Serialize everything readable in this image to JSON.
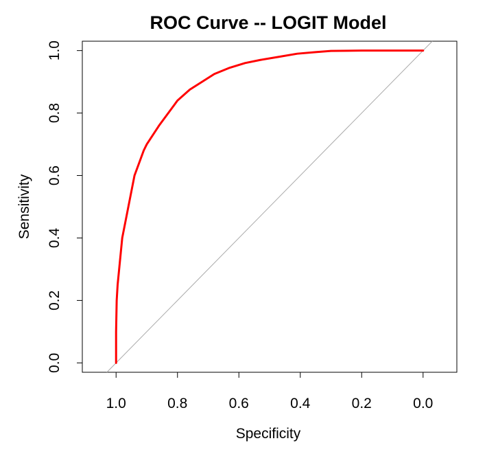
{
  "chart_data": {
    "type": "line",
    "title": "ROC Curve -- LOGIT Model",
    "xlabel": "Specificity",
    "ylabel": "Sensitivity",
    "x_reversed": true,
    "xlim": [
      1.11,
      -0.11
    ],
    "ylim": [
      -0.03,
      1.03
    ],
    "x_ticks": [
      "1.0",
      "0.8",
      "0.6",
      "0.4",
      "0.2",
      "0.0"
    ],
    "y_ticks": [
      "0.0",
      "0.2",
      "0.4",
      "0.6",
      "0.8",
      "1.0"
    ],
    "grid": false,
    "legend": "none",
    "series": [
      {
        "color": "#ff0000",
        "points": [
          [
            1.0,
            0.0
          ],
          [
            1.0,
            0.1
          ],
          [
            0.998,
            0.2
          ],
          [
            0.995,
            0.25
          ],
          [
            0.99,
            0.3
          ],
          [
            0.985,
            0.35
          ],
          [
            0.98,
            0.4
          ],
          [
            0.97,
            0.45
          ],
          [
            0.96,
            0.5
          ],
          [
            0.95,
            0.55
          ],
          [
            0.94,
            0.6
          ],
          [
            0.925,
            0.64
          ],
          [
            0.91,
            0.68
          ],
          [
            0.9,
            0.7
          ],
          [
            0.88,
            0.73
          ],
          [
            0.86,
            0.76
          ],
          [
            0.83,
            0.8
          ],
          [
            0.8,
            0.84
          ],
          [
            0.76,
            0.875
          ],
          [
            0.72,
            0.9
          ],
          [
            0.68,
            0.925
          ],
          [
            0.63,
            0.945
          ],
          [
            0.58,
            0.96
          ],
          [
            0.53,
            0.97
          ],
          [
            0.47,
            0.98
          ],
          [
            0.41,
            0.99
          ],
          [
            0.35,
            0.995
          ],
          [
            0.3,
            0.999
          ],
          [
            0.2,
            1.0
          ],
          [
            0.1,
            1.0
          ],
          [
            0.0,
            1.0
          ]
        ]
      }
    ],
    "reference_line": {
      "from": [
        1.0,
        0.0
      ],
      "to": [
        0.0,
        1.0
      ],
      "color": "#aaaaaa"
    }
  }
}
